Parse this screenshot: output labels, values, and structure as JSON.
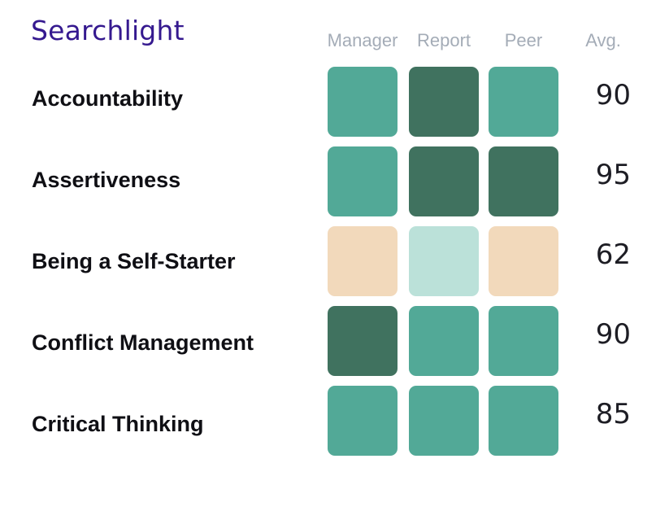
{
  "brand": {
    "name": "Searchlight",
    "color": "#35198f"
  },
  "columns": {
    "manager": "Manager",
    "report": "Report",
    "peer": "Peer",
    "avg": "Avg."
  },
  "legend_colors": {
    "dark_green": "#40725f",
    "green": "#52a997",
    "light_teal": "#bbe1d9",
    "peach": "#f2d9bb"
  },
  "rows": [
    {
      "label": "Accountability",
      "avg": "90",
      "cells": {
        "manager": "#52a997",
        "report": "#40725f",
        "peer": "#52a997"
      }
    },
    {
      "label": "Assertiveness",
      "avg": "95",
      "cells": {
        "manager": "#52a997",
        "report": "#40725f",
        "peer": "#40725f"
      }
    },
    {
      "label": "Being a Self-Starter",
      "avg": "62",
      "cells": {
        "manager": "#f2d9bb",
        "report": "#bbe1d9",
        "peer": "#f2d9bb"
      }
    },
    {
      "label": "Conflict Management",
      "avg": "90",
      "cells": {
        "manager": "#40725f",
        "report": "#52a997",
        "peer": "#52a997"
      }
    },
    {
      "label": "Critical Thinking",
      "avg": "85",
      "cells": {
        "manager": "#52a997",
        "report": "#52a997",
        "peer": "#52a997"
      }
    }
  ]
}
